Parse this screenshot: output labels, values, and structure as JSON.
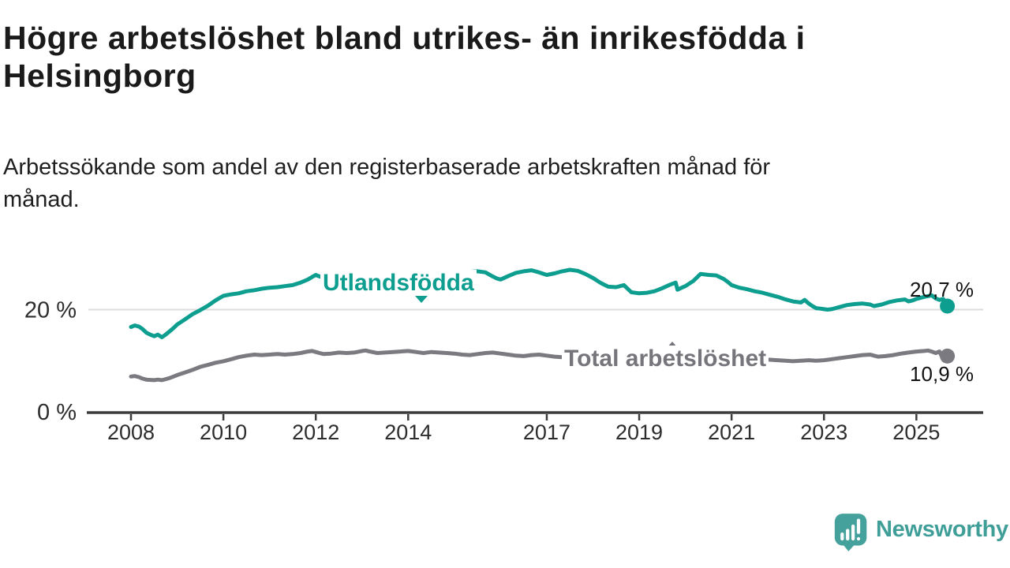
{
  "chart_data": {
    "type": "line",
    "title": "Högre arbetslöshet bland utrikes- än inrikesfödda i Helsingborg",
    "subtitle": "Arbetssökande som andel av den registerbaserade arbetskraften månad för månad.",
    "unit": "%",
    "x_range": [
      2008.0,
      2025.67
    ],
    "grid": "horizontal-only",
    "legend_position": "inline-labels-on-lines",
    "x_axis": {
      "ticks": [
        {
          "year": 2008,
          "label": "2008"
        },
        {
          "year": 2010,
          "label": "2010"
        },
        {
          "year": 2012,
          "label": "2012"
        },
        {
          "year": 2014,
          "label": "2014"
        },
        {
          "year": 2017,
          "label": "2017"
        },
        {
          "year": 2019,
          "label": "2019"
        },
        {
          "year": 2021,
          "label": "2021"
        },
        {
          "year": 2023,
          "label": "2023"
        },
        {
          "year": 2025,
          "label": "2025"
        }
      ]
    },
    "y_axis": {
      "range": [
        0,
        28
      ],
      "ticks": [
        {
          "value": 0,
          "label": "0 %"
        },
        {
          "value": 20,
          "label": "20 %"
        }
      ]
    },
    "style": {
      "teal": "#0d9e90",
      "gray": "#7a7a80",
      "grid_color": "#dcdcdc",
      "axis_color": "#3c3c3c",
      "axis_text_color": "#2d2d2d",
      "value_text_color": "#111111"
    },
    "series": [
      {
        "id": "utlandsfodda",
        "name": "Utlandsfödda",
        "color": "#0d9e90",
        "end_label": "20,7 %",
        "end_value": 20.7,
        "points": [
          [
            2008.0,
            16.6
          ],
          [
            2008.08,
            16.9
          ],
          [
            2008.17,
            16.7
          ],
          [
            2008.25,
            16.2
          ],
          [
            2008.33,
            15.5
          ],
          [
            2008.42,
            15.1
          ],
          [
            2008.5,
            14.8
          ],
          [
            2008.58,
            15.1
          ],
          [
            2008.67,
            14.6
          ],
          [
            2008.75,
            15.1
          ],
          [
            2008.83,
            15.7
          ],
          [
            2008.92,
            16.4
          ],
          [
            2009.0,
            17.1
          ],
          [
            2009.17,
            18.1
          ],
          [
            2009.33,
            19.1
          ],
          [
            2009.5,
            19.9
          ],
          [
            2009.67,
            20.8
          ],
          [
            2009.83,
            21.8
          ],
          [
            2010.0,
            22.7
          ],
          [
            2010.17,
            23.0
          ],
          [
            2010.33,
            23.2
          ],
          [
            2010.5,
            23.6
          ],
          [
            2010.67,
            23.8
          ],
          [
            2010.83,
            24.1
          ],
          [
            2011.0,
            24.3
          ],
          [
            2011.17,
            24.4
          ],
          [
            2011.33,
            24.6
          ],
          [
            2011.5,
            24.8
          ],
          [
            2011.67,
            25.3
          ],
          [
            2011.83,
            25.9
          ],
          [
            2011.92,
            26.4
          ],
          [
            2012.0,
            26.8
          ],
          [
            2012.08,
            26.5
          ],
          [
            2012.17,
            26.3
          ],
          [
            2012.33,
            26.4
          ],
          [
            2012.5,
            26.6
          ],
          [
            2012.67,
            26.5
          ],
          [
            2012.83,
            26.4
          ],
          [
            2013.0,
            26.5
          ],
          [
            2013.17,
            26.6
          ],
          [
            2013.33,
            26.7
          ],
          [
            2013.5,
            26.8
          ],
          [
            2013.67,
            26.7
          ],
          [
            2013.83,
            26.8
          ],
          [
            2014.0,
            26.9
          ],
          [
            2014.17,
            27.0
          ],
          [
            2014.33,
            27.1
          ],
          [
            2014.5,
            27.2
          ],
          [
            2014.67,
            27.1
          ],
          [
            2014.83,
            27.2
          ],
          [
            2015.0,
            27.2
          ],
          [
            2015.17,
            27.3
          ],
          [
            2015.33,
            27.4
          ],
          [
            2015.5,
            27.5
          ],
          [
            2015.67,
            27.3
          ],
          [
            2015.75,
            26.9
          ],
          [
            2015.83,
            26.5
          ],
          [
            2015.92,
            26.1
          ],
          [
            2016.0,
            25.9
          ],
          [
            2016.17,
            26.6
          ],
          [
            2016.33,
            27.2
          ],
          [
            2016.5,
            27.5
          ],
          [
            2016.67,
            27.7
          ],
          [
            2016.83,
            27.3
          ],
          [
            2017.0,
            26.8
          ],
          [
            2017.17,
            27.1
          ],
          [
            2017.33,
            27.5
          ],
          [
            2017.5,
            27.8
          ],
          [
            2017.67,
            27.6
          ],
          [
            2017.83,
            27.0
          ],
          [
            2018.0,
            26.2
          ],
          [
            2018.17,
            25.2
          ],
          [
            2018.33,
            24.5
          ],
          [
            2018.5,
            24.4
          ],
          [
            2018.67,
            24.8
          ],
          [
            2018.83,
            23.4
          ],
          [
            2019.0,
            23.2
          ],
          [
            2019.17,
            23.3
          ],
          [
            2019.33,
            23.6
          ],
          [
            2019.5,
            24.2
          ],
          [
            2019.67,
            24.9
          ],
          [
            2019.79,
            25.3
          ],
          [
            2019.83,
            23.9
          ],
          [
            2019.92,
            24.3
          ],
          [
            2020.0,
            24.6
          ],
          [
            2020.17,
            25.6
          ],
          [
            2020.33,
            27.0
          ],
          [
            2020.5,
            26.8
          ],
          [
            2020.67,
            26.7
          ],
          [
            2020.83,
            26.0
          ],
          [
            2020.92,
            25.4
          ],
          [
            2021.0,
            24.8
          ],
          [
            2021.17,
            24.3
          ],
          [
            2021.33,
            24.0
          ],
          [
            2021.5,
            23.6
          ],
          [
            2021.67,
            23.3
          ],
          [
            2021.83,
            22.9
          ],
          [
            2022.0,
            22.5
          ],
          [
            2022.17,
            22.0
          ],
          [
            2022.33,
            21.6
          ],
          [
            2022.5,
            21.4
          ],
          [
            2022.58,
            21.9
          ],
          [
            2022.67,
            21.2
          ],
          [
            2022.75,
            20.7
          ],
          [
            2022.83,
            20.3
          ],
          [
            2022.92,
            20.2
          ],
          [
            2023.0,
            20.1
          ],
          [
            2023.08,
            20.0
          ],
          [
            2023.17,
            20.1
          ],
          [
            2023.33,
            20.5
          ],
          [
            2023.5,
            20.9
          ],
          [
            2023.67,
            21.1
          ],
          [
            2023.83,
            21.2
          ],
          [
            2024.0,
            21.0
          ],
          [
            2024.08,
            20.7
          ],
          [
            2024.25,
            21.0
          ],
          [
            2024.42,
            21.5
          ],
          [
            2024.58,
            21.8
          ],
          [
            2024.75,
            22.0
          ],
          [
            2024.83,
            21.6
          ],
          [
            2024.92,
            21.8
          ],
          [
            2025.0,
            22.1
          ],
          [
            2025.17,
            22.5
          ],
          [
            2025.33,
            22.8
          ],
          [
            2025.42,
            22.2
          ],
          [
            2025.5,
            21.9
          ],
          [
            2025.58,
            22.1
          ],
          [
            2025.67,
            20.7
          ]
        ]
      },
      {
        "id": "total",
        "name": "Total arbetslöshet",
        "color": "#7a7a80",
        "end_label": "10,9 %",
        "end_value": 10.9,
        "points": [
          [
            2008.0,
            6.9
          ],
          [
            2008.08,
            7.0
          ],
          [
            2008.17,
            6.8
          ],
          [
            2008.25,
            6.5
          ],
          [
            2008.33,
            6.3
          ],
          [
            2008.5,
            6.2
          ],
          [
            2008.58,
            6.3
          ],
          [
            2008.67,
            6.2
          ],
          [
            2008.75,
            6.4
          ],
          [
            2008.83,
            6.6
          ],
          [
            2008.92,
            6.9
          ],
          [
            2009.0,
            7.2
          ],
          [
            2009.17,
            7.7
          ],
          [
            2009.33,
            8.2
          ],
          [
            2009.5,
            8.8
          ],
          [
            2009.67,
            9.2
          ],
          [
            2009.83,
            9.6
          ],
          [
            2010.0,
            9.9
          ],
          [
            2010.17,
            10.3
          ],
          [
            2010.33,
            10.7
          ],
          [
            2010.5,
            11.0
          ],
          [
            2010.67,
            11.2
          ],
          [
            2010.83,
            11.1
          ],
          [
            2011.0,
            11.2
          ],
          [
            2011.17,
            11.3
          ],
          [
            2011.33,
            11.2
          ],
          [
            2011.5,
            11.3
          ],
          [
            2011.67,
            11.5
          ],
          [
            2011.83,
            11.8
          ],
          [
            2011.92,
            11.9
          ],
          [
            2012.0,
            11.7
          ],
          [
            2012.08,
            11.5
          ],
          [
            2012.17,
            11.3
          ],
          [
            2012.33,
            11.4
          ],
          [
            2012.5,
            11.6
          ],
          [
            2012.67,
            11.5
          ],
          [
            2012.83,
            11.6
          ],
          [
            2013.0,
            11.9
          ],
          [
            2013.08,
            12.0
          ],
          [
            2013.17,
            11.8
          ],
          [
            2013.33,
            11.5
          ],
          [
            2013.5,
            11.6
          ],
          [
            2013.67,
            11.7
          ],
          [
            2013.83,
            11.8
          ],
          [
            2014.0,
            11.9
          ],
          [
            2014.17,
            11.7
          ],
          [
            2014.33,
            11.5
          ],
          [
            2014.5,
            11.7
          ],
          [
            2014.67,
            11.6
          ],
          [
            2014.83,
            11.5
          ],
          [
            2015.0,
            11.4
          ],
          [
            2015.17,
            11.2
          ],
          [
            2015.33,
            11.1
          ],
          [
            2015.5,
            11.3
          ],
          [
            2015.67,
            11.5
          ],
          [
            2015.83,
            11.6
          ],
          [
            2016.0,
            11.4
          ],
          [
            2016.17,
            11.2
          ],
          [
            2016.33,
            11.0
          ],
          [
            2016.5,
            10.9
          ],
          [
            2016.67,
            11.1
          ],
          [
            2016.83,
            11.2
          ],
          [
            2017.0,
            11.0
          ],
          [
            2017.17,
            10.8
          ],
          [
            2017.33,
            10.7
          ],
          [
            2017.5,
            10.6
          ],
          [
            2018.0,
            10.3
          ],
          [
            2018.5,
            10.1
          ],
          [
            2019.0,
            10.0
          ],
          [
            2019.5,
            10.2
          ],
          [
            2019.79,
            10.4
          ],
          [
            2019.83,
            10.0
          ],
          [
            2020.0,
            10.2
          ],
          [
            2020.33,
            11.2
          ],
          [
            2020.5,
            11.4
          ],
          [
            2020.83,
            11.1
          ],
          [
            2021.0,
            10.9
          ],
          [
            2021.5,
            10.4
          ],
          [
            2022.0,
            10.1
          ],
          [
            2022.17,
            10.0
          ],
          [
            2022.33,
            9.9
          ],
          [
            2022.5,
            10.0
          ],
          [
            2022.67,
            10.1
          ],
          [
            2022.83,
            10.0
          ],
          [
            2023.0,
            10.1
          ],
          [
            2023.17,
            10.3
          ],
          [
            2023.33,
            10.5
          ],
          [
            2023.5,
            10.7
          ],
          [
            2023.67,
            10.9
          ],
          [
            2023.83,
            11.1
          ],
          [
            2024.0,
            11.2
          ],
          [
            2024.08,
            11.0
          ],
          [
            2024.17,
            10.8
          ],
          [
            2024.33,
            10.9
          ],
          [
            2024.5,
            11.1
          ],
          [
            2024.67,
            11.4
          ],
          [
            2024.83,
            11.6
          ],
          [
            2025.0,
            11.8
          ],
          [
            2025.17,
            11.9
          ],
          [
            2025.25,
            12.0
          ],
          [
            2025.33,
            11.8
          ],
          [
            2025.42,
            11.5
          ],
          [
            2025.5,
            11.8
          ],
          [
            2025.58,
            10.3
          ],
          [
            2025.67,
            10.9
          ]
        ]
      }
    ]
  },
  "footer": {
    "brand": "Newsworthy",
    "logo_icon": "speech-bubble-bar-chart-icon",
    "brand_color": "#3f9e98"
  }
}
